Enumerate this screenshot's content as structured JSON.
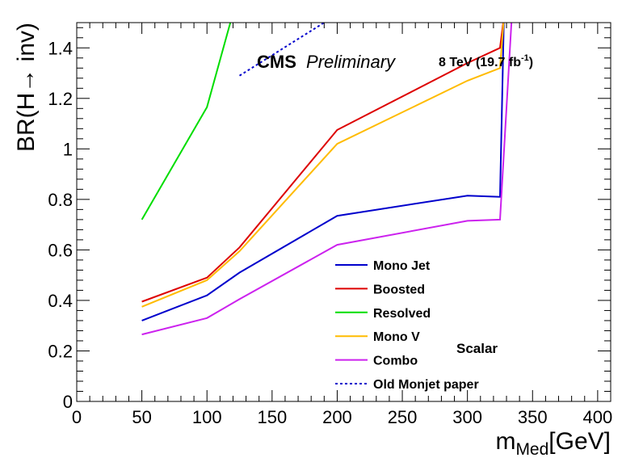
{
  "chart_data": {
    "type": "line",
    "xlabel_main": "m",
    "xlabel_sub": "Med",
    "xlabel_unit": "[GeV]",
    "ylabel": "BR(H→ inv)",
    "xlim": [
      0,
      410
    ],
    "ylim": [
      0,
      1.5
    ],
    "x_ticks": [
      0,
      50,
      100,
      150,
      200,
      250,
      300,
      350,
      400
    ],
    "y_ticks": [
      0,
      0.2,
      0.4,
      0.6,
      0.8,
      1,
      1.2,
      1.4
    ],
    "x_tick_labels": [
      "0",
      "50",
      "100",
      "150",
      "200",
      "250",
      "300",
      "350",
      "400"
    ],
    "y_tick_labels": [
      "0",
      "0.2",
      "0.4",
      "0.6",
      "0.8",
      "1",
      "1.2",
      "1.4"
    ],
    "grid": false,
    "legend_position": "center-right",
    "annotations": {
      "experiment": "CMS",
      "status": "Preliminary",
      "energy": "8 TeV (19.7 fb",
      "energy_sup": "-1",
      "energy_close": ")",
      "model": "Scalar"
    },
    "series": [
      {
        "name": "Mono Jet",
        "color": "#0000cc",
        "dashed": false,
        "points": [
          [
            50,
            0.32
          ],
          [
            100,
            0.42
          ],
          [
            125,
            0.51
          ],
          [
            200,
            0.735
          ],
          [
            300,
            0.815
          ],
          [
            325,
            0.81
          ],
          [
            328,
            1.52
          ]
        ]
      },
      {
        "name": "Boosted",
        "color": "#dd0000",
        "dashed": false,
        "points": [
          [
            50,
            0.395
          ],
          [
            100,
            0.49
          ],
          [
            125,
            0.61
          ],
          [
            200,
            1.075
          ],
          [
            300,
            1.34
          ],
          [
            325,
            1.4
          ],
          [
            328,
            1.52
          ]
        ]
      },
      {
        "name": "Resolved",
        "color": "#00dd00",
        "dashed": false,
        "points": [
          [
            50,
            0.72
          ],
          [
            100,
            1.165
          ],
          [
            119,
            1.52
          ]
        ]
      },
      {
        "name": "Mono V",
        "color": "#ffbb00",
        "dashed": false,
        "points": [
          [
            50,
            0.375
          ],
          [
            100,
            0.48
          ],
          [
            125,
            0.595
          ],
          [
            200,
            1.02
          ],
          [
            300,
            1.27
          ],
          [
            325,
            1.32
          ],
          [
            328,
            1.52
          ]
        ]
      },
      {
        "name": "Combo",
        "color": "#cc22ee",
        "dashed": false,
        "points": [
          [
            50,
            0.265
          ],
          [
            100,
            0.33
          ],
          [
            125,
            0.405
          ],
          [
            200,
            0.62
          ],
          [
            300,
            0.715
          ],
          [
            325,
            0.72
          ],
          [
            334,
            1.52
          ]
        ]
      },
      {
        "name": "Old Monjet paper",
        "color": "#0000cc",
        "dashed": true,
        "points": [
          [
            125,
            1.29
          ],
          [
            190,
            1.5
          ]
        ]
      }
    ]
  }
}
